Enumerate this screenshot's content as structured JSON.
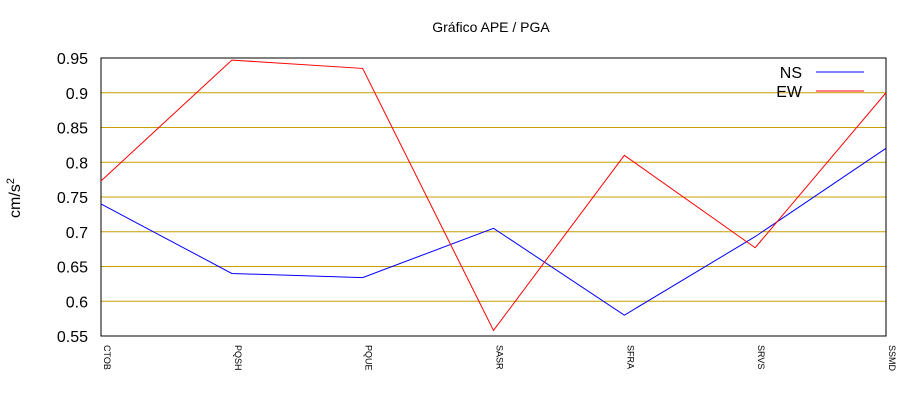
{
  "chart_data": {
    "type": "line",
    "title": "Gráfico  APE / PGA",
    "xlabel": "",
    "ylabel": "cm/s",
    "ylabel_superscript": "2",
    "categories": [
      "CTOB",
      "PQSH",
      "PQUE",
      "SASR",
      "SFRA",
      "SRVS",
      "SSMD"
    ],
    "series": [
      {
        "name": "NS",
        "color": "#0000ff",
        "values": [
          0.74,
          0.64,
          0.634,
          0.705,
          0.58,
          0.693,
          0.82
        ]
      },
      {
        "name": "EW",
        "color": "#ff0000",
        "values": [
          0.773,
          0.947,
          0.935,
          0.558,
          0.81,
          0.677,
          0.9
        ]
      }
    ],
    "ylim": [
      0.55,
      0.95
    ],
    "yticks": [
      "0.55",
      "0.6",
      "0.65",
      "0.7",
      "0.75",
      "0.8",
      "0.85",
      "0.9",
      "0.95"
    ],
    "grid": true,
    "grid_color": "#c8a000",
    "legend_position": "top-right"
  }
}
